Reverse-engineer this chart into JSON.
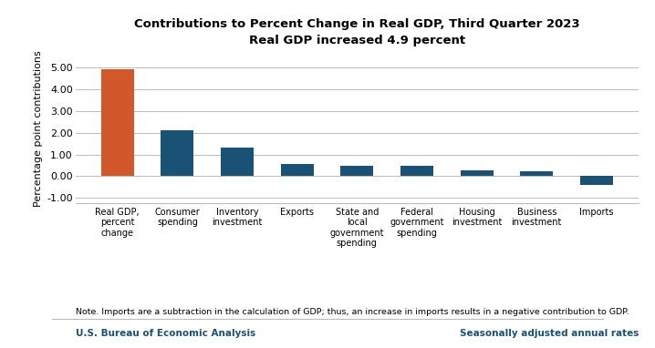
{
  "title_line1": "Contributions to Percent Change in Real GDP, Third Quarter 2023",
  "title_line2": "Real GDP increased 4.9 percent",
  "categories": [
    "Real GDP,\npercent\nchange",
    "Consumer\nspending",
    "Inventory\ninvestment",
    "Exports",
    "State and\nlocal\ngovernment\nspending",
    "Federal\ngovernment\nspending",
    "Housing\ninvestment",
    "Business\ninvestment",
    "Imports"
  ],
  "values": [
    4.91,
    2.11,
    1.32,
    0.58,
    0.5,
    0.46,
    0.27,
    0.21,
    -0.38
  ],
  "ylabel": "Percentage point contributions",
  "ylim": [
    -1.25,
    5.6
  ],
  "yticks": [
    -1.0,
    0.0,
    1.0,
    2.0,
    3.0,
    4.0,
    5.0
  ],
  "note": "Note. Imports are a subtraction in the calculation of GDP; thus, an increase in imports results in a negative contribution to GDP.",
  "source_left": "U.S. Bureau of Economic Analysis",
  "source_right": "Seasonally adjusted annual rates",
  "background_color": "#FFFFFF",
  "grid_color": "#BBBBBB",
  "title_color": "#000000",
  "bar_orange": "#D2572A",
  "bar_blue": "#1A5276",
  "source_color": "#1A5276",
  "note_color": "#000000"
}
